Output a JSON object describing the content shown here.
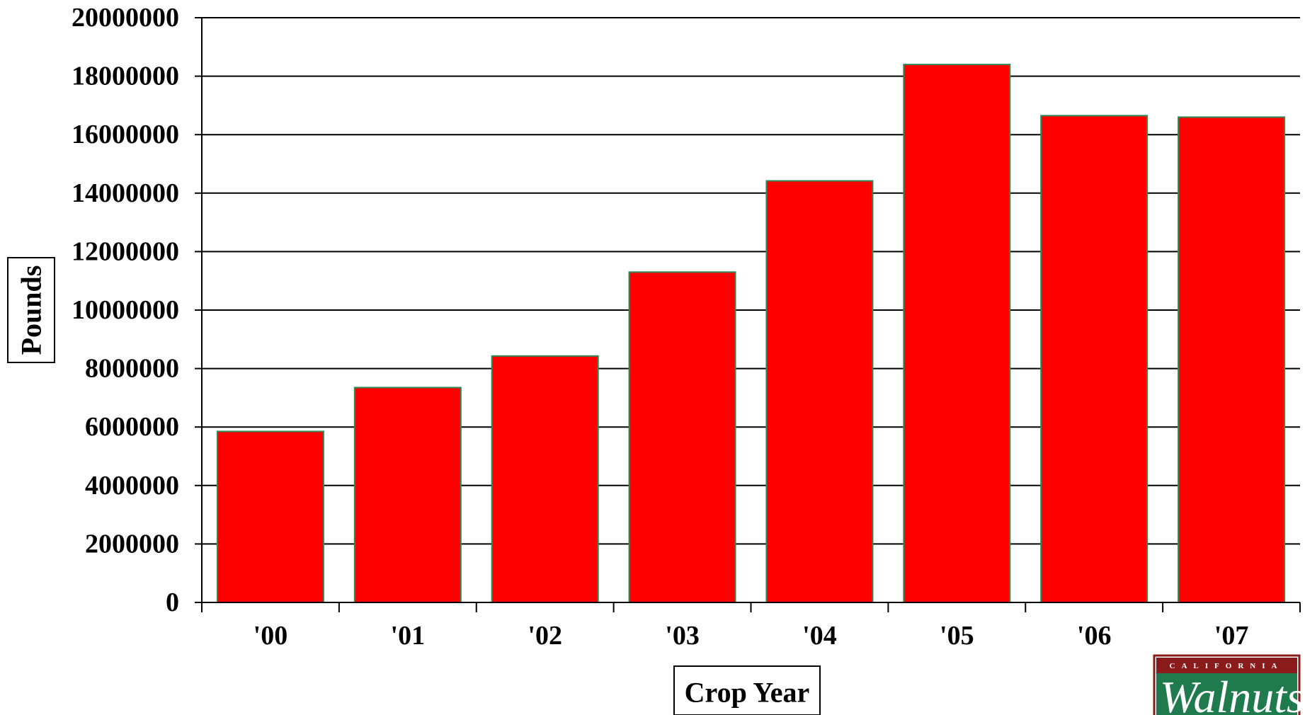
{
  "chart_data": {
    "type": "bar",
    "categories": [
      "'00",
      "'01",
      "'02",
      "'03",
      "'04",
      "'05",
      "'06",
      "'07"
    ],
    "values": [
      5850000,
      7350000,
      8430000,
      11300000,
      14420000,
      18400000,
      16650000,
      16600000
    ],
    "title": "",
    "xlabel": "Crop Year",
    "ylabel": "Pounds",
    "ylim": [
      0,
      20000000
    ],
    "yticks": [
      "0",
      "2000000",
      "4000000",
      "6000000",
      "8000000",
      "10000000",
      "12000000",
      "14000000",
      "16000000",
      "18000000",
      "20000000"
    ],
    "grid": true,
    "legend": "none",
    "bar_color": "#ff0000",
    "bar_edge_color": "#2e8b57"
  },
  "logo": {
    "top_text": "CALIFORNIA",
    "script_text": "Walnuts",
    "bg_color": "#1f7a4d",
    "frame_color": "#8b1a1a"
  }
}
